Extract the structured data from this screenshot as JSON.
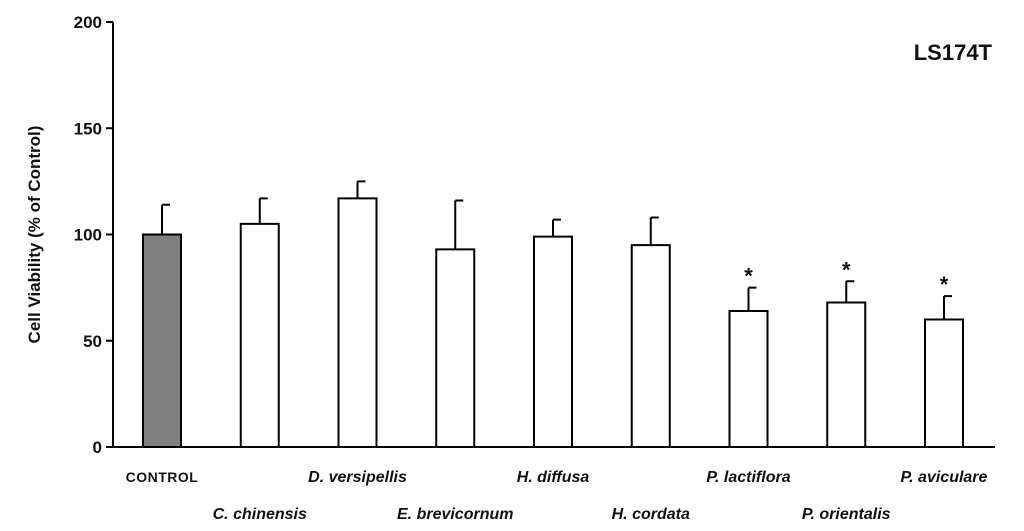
{
  "chart_data": {
    "type": "bar",
    "title": "LS174T",
    "ylabel": "Cell Viability (% of Control)",
    "xlabel": "",
    "ylim": [
      0,
      200
    ],
    "yticks": [
      "0",
      "50",
      "100",
      "150",
      "200"
    ],
    "categories": [
      "CONTROL",
      "C. chinensis",
      "D. versipellis",
      "E. brevicornum",
      "H. diffusa",
      "H. cordata",
      "P. lactiflora",
      "P. orientalis",
      "P. aviculare"
    ],
    "values": [
      100,
      105,
      117,
      93,
      99,
      95,
      64,
      68,
      60
    ],
    "errors": [
      14,
      12,
      8,
      23,
      8,
      13,
      11,
      10,
      11
    ],
    "significance": [
      "",
      "",
      "",
      "",
      "",
      "",
      "*",
      "*",
      "*"
    ],
    "colors": {
      "control": "#808080",
      "treatment": "#ffffff",
      "stroke": "#000000"
    },
    "grid": false,
    "legend": "none"
  }
}
